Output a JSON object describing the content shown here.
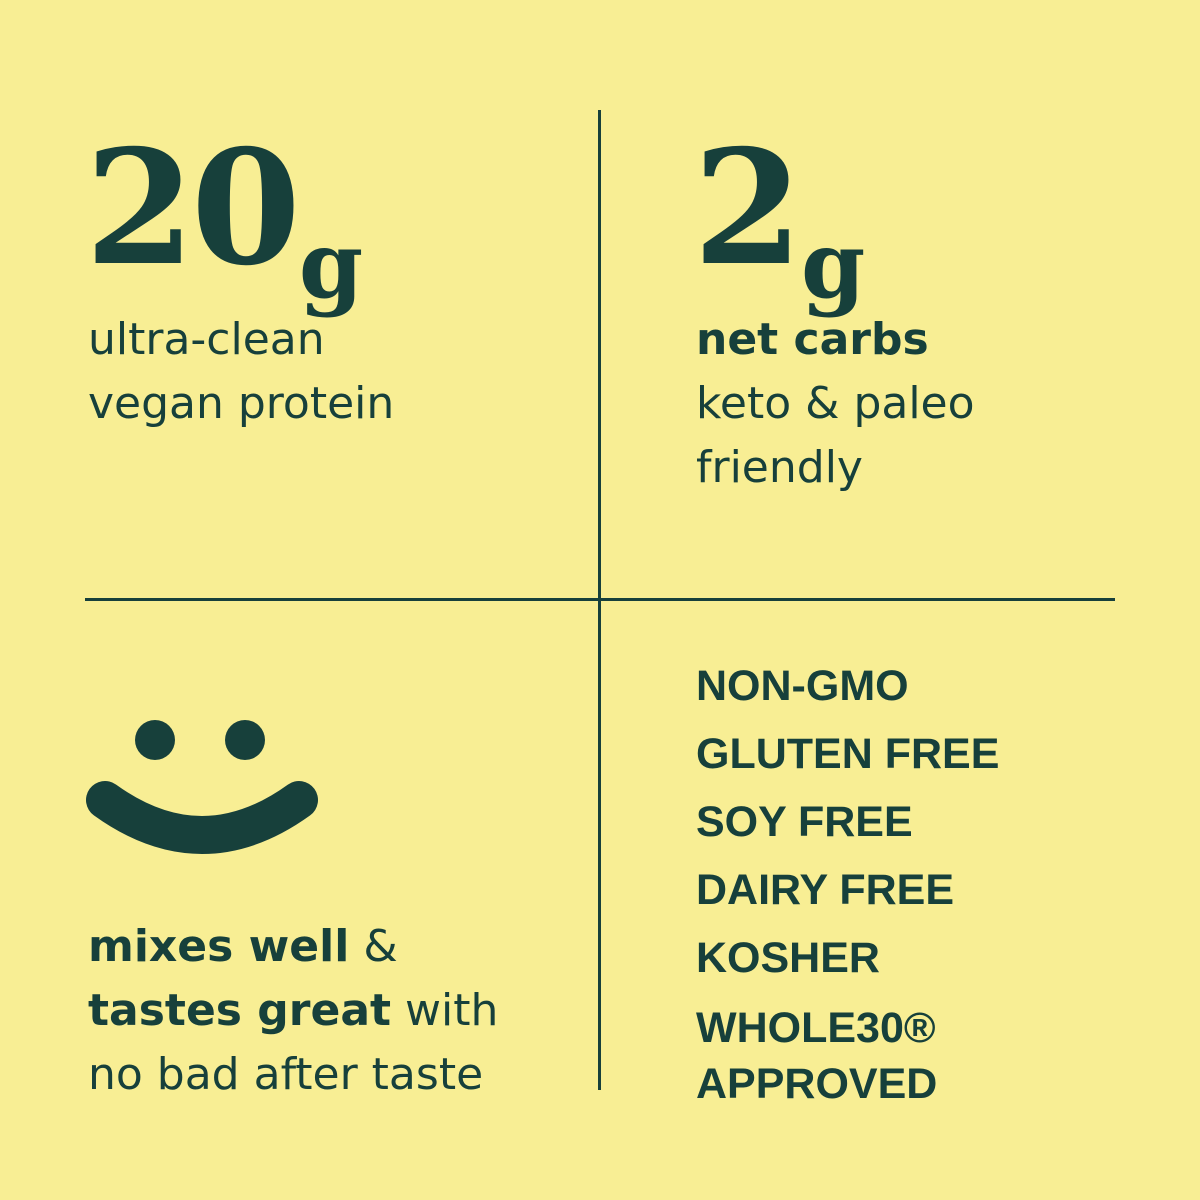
{
  "protein": {
    "amount": "20",
    "unit": "g",
    "line1": "ultra-clean",
    "line2": "vegan protein"
  },
  "carbs": {
    "amount": "2",
    "unit": "g",
    "heading": "net carbs",
    "line1": "keto & paleo",
    "line2": "friendly"
  },
  "mix": {
    "bold1": "mixes well",
    "rest1": " &",
    "bold2": "tastes great",
    "rest2": " with",
    "line3": "no bad after taste"
  },
  "claims": [
    "NON-GMO",
    "GLUTEN FREE",
    "SOY FREE",
    "DAIRY FREE",
    "KOSHER",
    "WHOLE30® APPROVED"
  ],
  "colors": {
    "background": "#f8ee94",
    "ink": "#17403b"
  },
  "icons": {
    "smiley": "smiley-face-icon"
  }
}
